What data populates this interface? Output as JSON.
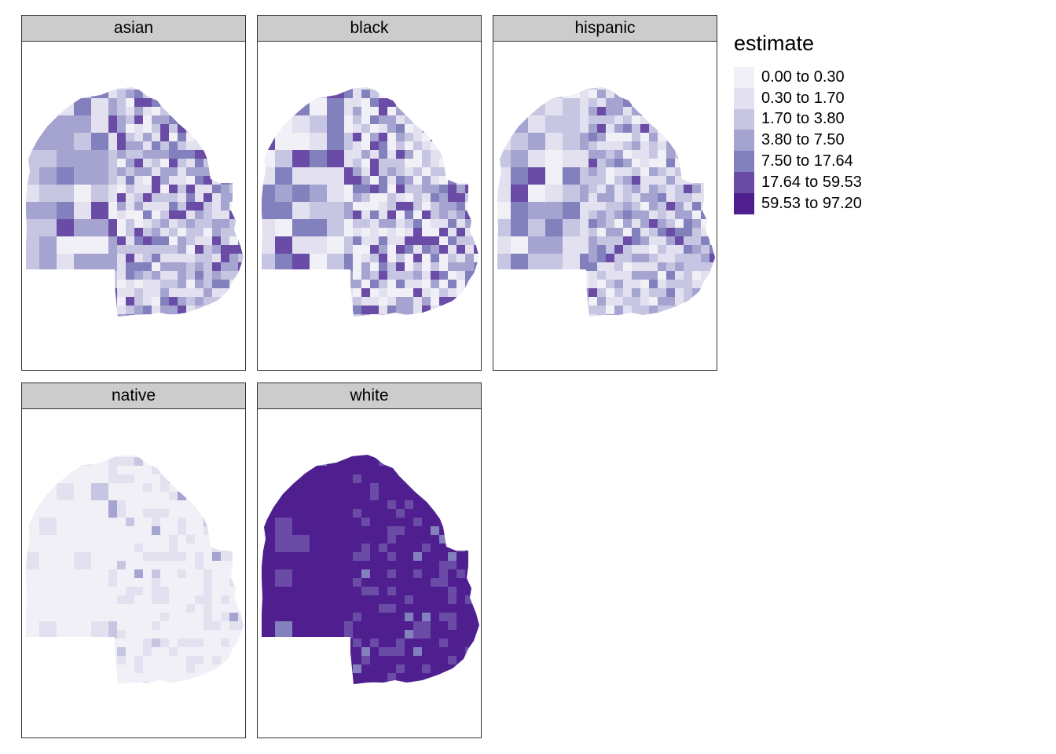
{
  "legend": {
    "title": "estimate",
    "bins": [
      {
        "label": "0.00 to 0.30",
        "color": "#f2f0f7"
      },
      {
        "label": "0.30 to 1.70",
        "color": "#e3e1ef"
      },
      {
        "label": "1.70 to 3.80",
        "color": "#c7c6e2"
      },
      {
        "label": "3.80 to 7.50",
        "color": "#a5a3cf"
      },
      {
        "label": "7.50 to 17.64",
        "color": "#8280bd"
      },
      {
        "label": "17.64 to 59.53",
        "color": "#6a4ca7"
      },
      {
        "label": "59.53 to 97.20",
        "color": "#4f1f8f"
      }
    ]
  },
  "panels": [
    {
      "label": "asian",
      "dist": [
        0.1,
        0.22,
        0.26,
        0.22,
        0.12,
        0.08,
        0.0
      ]
    },
    {
      "label": "black",
      "dist": [
        0.25,
        0.2,
        0.15,
        0.13,
        0.12,
        0.15,
        0.0
      ]
    },
    {
      "label": "hispanic",
      "dist": [
        0.12,
        0.28,
        0.28,
        0.18,
        0.1,
        0.04,
        0.0
      ]
    },
    {
      "label": "native",
      "dist": [
        0.72,
        0.23,
        0.04,
        0.01,
        0.0,
        0.0,
        0.0
      ]
    },
    {
      "label": "white",
      "dist": [
        0.0,
        0.0,
        0.0,
        0.0,
        0.04,
        0.16,
        0.8
      ]
    }
  ]
}
